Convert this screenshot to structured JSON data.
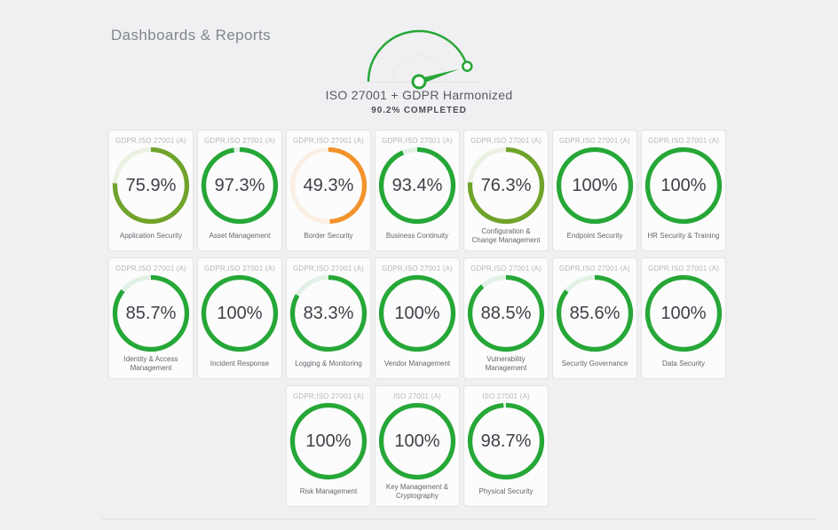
{
  "page": {
    "title": "Dashboards & Reports"
  },
  "gauge": {
    "title": "ISO 27001 + GDPR Harmonized",
    "completed_label": "90.2% COMPLETED",
    "value": 90.2,
    "color": "#26a737",
    "track_color": "#ebebee",
    "baseline_color": "#e7e7ea"
  },
  "colors": {
    "green": "#26a737",
    "olive": "#70a32b",
    "orange": "#f2932b"
  },
  "cards": [
    {
      "framework": "GDPR,ISO 27001 (A)",
      "value": 75.9,
      "value_label": "75.9%",
      "category": "Application Security",
      "tone": "olive"
    },
    {
      "framework": "GDPR,ISO 27001 (A)",
      "value": 97.3,
      "value_label": "97.3%",
      "category": "Asset Management",
      "tone": "green"
    },
    {
      "framework": "GDPR,ISO 27001 (A)",
      "value": 49.3,
      "value_label": "49.3%",
      "category": "Border Security",
      "tone": "orange"
    },
    {
      "framework": "GDPR,ISO 27001 (A)",
      "value": 93.4,
      "value_label": "93.4%",
      "category": "Business Continuity",
      "tone": "green"
    },
    {
      "framework": "GDPR,ISO 27001 (A)",
      "value": 76.3,
      "value_label": "76.3%",
      "category": "Configuration & Change Management",
      "tone": "olive"
    },
    {
      "framework": "GDPR,ISO 27001 (A)",
      "value": 100,
      "value_label": "100%",
      "category": "Endpoint Security",
      "tone": "green"
    },
    {
      "framework": "GDPR,ISO 27001 (A)",
      "value": 100,
      "value_label": "100%",
      "category": "HR Security & Training",
      "tone": "green"
    },
    {
      "framework": "GDPR,ISO 27001 (A)",
      "value": 85.7,
      "value_label": "85.7%",
      "category": "Identity & Access Management",
      "tone": "green"
    },
    {
      "framework": "GDPR,ISO 27001 (A)",
      "value": 100,
      "value_label": "100%",
      "category": "Incident Response",
      "tone": "green"
    },
    {
      "framework": "GDPR,ISO 27001 (A)",
      "value": 83.3,
      "value_label": "83.3%",
      "category": "Logging & Monitoring",
      "tone": "green"
    },
    {
      "framework": "GDPR,ISO 27001 (A)",
      "value": 100,
      "value_label": "100%",
      "category": "Vendor Management",
      "tone": "green"
    },
    {
      "framework": "GDPR,ISO 27001 (A)",
      "value": 88.5,
      "value_label": "88.5%",
      "category": "Vulnerability Management",
      "tone": "green"
    },
    {
      "framework": "GDPR,ISO 27001 (A)",
      "value": 85.6,
      "value_label": "85.6%",
      "category": "Security Governance",
      "tone": "green"
    },
    {
      "framework": "GDPR,ISO 27001 (A)",
      "value": 100,
      "value_label": "100%",
      "category": "Data Security",
      "tone": "green"
    },
    {
      "framework": "GDPR,ISO 27001 (A)",
      "value": 100,
      "value_label": "100%",
      "category": "Risk Management",
      "tone": "green"
    },
    {
      "framework": "ISO 27001 (A)",
      "value": 100,
      "value_label": "100%",
      "category": "Key Management & Cryptography",
      "tone": "green"
    },
    {
      "framework": "ISO 27001 (A)",
      "value": 98.7,
      "value_label": "98.7%",
      "category": "Physical Security",
      "tone": "green"
    }
  ]
}
